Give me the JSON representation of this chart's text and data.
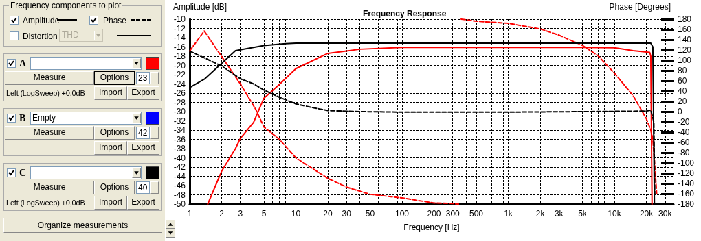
{
  "chart_data": {
    "type": "line",
    "title": "Frequency Response",
    "xlabel": "Frequency [Hz]",
    "ylabel": "Amplitude [dB]",
    "y2label": "Phase [Degrees]",
    "log": "x",
    "grid": true,
    "marker": "none",
    "xlim": [
      1,
      36000
    ],
    "xticks": [
      1,
      2,
      3,
      {
        "value": 4,
        "label": null
      },
      5,
      {
        "value": 6,
        "label": null
      },
      {
        "value": 7,
        "label": null
      },
      {
        "value": 8,
        "label": null
      },
      {
        "value": 9,
        "label": null
      },
      10,
      20,
      30,
      {
        "value": 40,
        "label": null
      },
      50,
      {
        "value": 60,
        "label": null
      },
      {
        "value": 70,
        "label": null
      },
      {
        "value": 80,
        "label": null
      },
      {
        "value": 90,
        "label": null
      },
      100,
      200,
      300,
      {
        "value": 400,
        "label": null
      },
      500,
      {
        "value": 600,
        "label": null
      },
      {
        "value": 700,
        "label": null
      },
      {
        "value": 800,
        "label": null
      },
      {
        "value": 900,
        "label": null
      },
      {
        "value": 1000,
        "label": "1k"
      },
      {
        "value": 2000,
        "label": "2k"
      },
      {
        "value": 3000,
        "label": "3k"
      },
      {
        "value": 4000,
        "label": null
      },
      {
        "value": 5000,
        "label": "5k"
      },
      {
        "value": 6000,
        "label": null
      },
      {
        "value": 7000,
        "label": null
      },
      {
        "value": 8000,
        "label": null
      },
      {
        "value": 9000,
        "label": null
      },
      {
        "value": 10000,
        "label": "10k"
      },
      {
        "value": 20000,
        "label": "20k"
      },
      {
        "value": 30000,
        "label": "30k"
      }
    ],
    "ylim": [
      -50,
      -10
    ],
    "yticks": [
      -50,
      -48,
      -46,
      -44,
      -42,
      -40,
      -38,
      -36,
      -34,
      -32,
      -30,
      -28,
      -26,
      -24,
      -22,
      -20,
      -18,
      -16,
      -14,
      -12,
      -10
    ],
    "y2lim": [
      -180,
      180
    ],
    "y2ticks": [
      -180,
      -160,
      -140,
      -120,
      -100,
      -80,
      -60,
      -40,
      -20,
      0,
      20,
      40,
      60,
      80,
      100,
      120,
      140,
      160,
      180
    ],
    "series": [
      {
        "color": "#ff0000",
        "line_style": "solid",
        "x": [
          1.48,
          2,
          2.7,
          3,
          4,
          5,
          7,
          10,
          20,
          40,
          100,
          200,
          1000,
          5000,
          10000,
          15000,
          21500,
          22000,
          22600
        ],
        "values": [
          -50,
          -42.9,
          -38,
          -35.8,
          -32.3,
          -27.1,
          -24.1,
          -20.7,
          -17.4,
          -16.5,
          -16.1,
          -16.1,
          -16.1,
          -16.1,
          -16.2,
          -16.8,
          -17.2,
          -18,
          -50
        ]
      },
      {
        "color": "#ff0000",
        "line_style": "dashed",
        "axis": "y2",
        "x": [
          1,
          1.37,
          3,
          4.2,
          5,
          7,
          10,
          20,
          30,
          50,
          100,
          200,
          300,
          340,
          350,
          360,
          500,
          1000,
          2000,
          3000,
          5000,
          7000,
          10000,
          15000,
          20000,
          22000,
          23000,
          24000,
          25000
        ],
        "values": [
          118,
          157,
          54,
          4,
          -30,
          -54,
          -90,
          -130,
          -147,
          -161,
          -168,
          -178,
          -179,
          -180,
          null,
          180,
          176,
          172,
          161,
          149,
          129,
          109,
          75,
          31,
          -14,
          -36,
          -54,
          -106,
          -160
        ]
      },
      {
        "color": "#000000",
        "line_style": "solid",
        "x": [
          1,
          1.39,
          2.7,
          5,
          8,
          10,
          100,
          1000,
          10000,
          22000,
          23000,
          23800
        ],
        "values": [
          -24.8,
          -22.9,
          -16.8,
          -15.7,
          -15.3,
          -15.2,
          -15.2,
          -15.2,
          -15.2,
          -15.2,
          -16,
          -50
        ]
      },
      {
        "color": "#000000",
        "line_style": "dashed",
        "axis": "y2",
        "x": [
          1,
          1.5,
          2,
          3,
          4,
          5,
          7,
          10,
          15,
          20,
          40,
          100,
          1000,
          5000,
          20000,
          22000,
          23500,
          24000
        ],
        "values": [
          118,
          101,
          89,
          64,
          54,
          42,
          28,
          15,
          7,
          2,
          0,
          -1,
          -1,
          0,
          1,
          3,
          -20,
          -160
        ]
      }
    ],
    "annotations": [
      "Frequency components to plot",
      "Amplitude",
      "Phase",
      "Distortion",
      "THD",
      "A",
      "Measure",
      "Options",
      "23",
      "Left (LogSweep) +0,0dB",
      "Import",
      "Export",
      "B",
      "Empty",
      "Measure",
      "Options",
      "42",
      "Import",
      "Export",
      "C",
      "Measure",
      "Options",
      "40",
      "Left (LogSweep) +0,0dB",
      "Import",
      "Export",
      "Organize measurements"
    ]
  }
}
